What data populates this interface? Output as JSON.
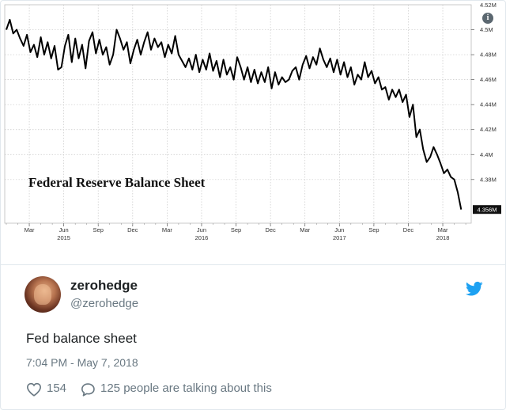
{
  "tweet": {
    "display_name": "zerohedge",
    "screen_name": "@zerohedge",
    "text": "Fed balance sheet",
    "timestamp": "7:04 PM - May 7, 2018",
    "like_count": "154",
    "talking_text": "125 people are talking about this",
    "icons": [
      "twitter-bird-icon",
      "heart-icon",
      "reply-icon",
      "info-icon"
    ],
    "colors": {
      "link": "#1da1f2",
      "muted": "#697882",
      "text": "#1c2022",
      "border": "#e1e8ed"
    }
  },
  "chart_data": {
    "type": "line",
    "title": "Federal Reserve Balance Sheet",
    "ylim": [
      4.345,
      4.52
    ],
    "y_ticks": [
      4.38,
      4.4,
      4.42,
      4.44,
      4.46,
      4.48,
      4.5
    ],
    "y_tick_labels": [
      "4.38M",
      "4.4M",
      "4.42M",
      "4.44M",
      "4.46M",
      "4.48M",
      "4.5M"
    ],
    "y_top_label": "4.52M",
    "last_value_label": "4.356M",
    "last_value": 4.356,
    "x_ticks": [
      {
        "label": "Mar",
        "year": "",
        "m": 2
      },
      {
        "label": "Jun",
        "year": "2015",
        "m": 5
      },
      {
        "label": "Sep",
        "year": "",
        "m": 8
      },
      {
        "label": "Dec",
        "year": "",
        "m": 11
      },
      {
        "label": "Mar",
        "year": "",
        "m": 14
      },
      {
        "label": "Jun",
        "year": "2016",
        "m": 17
      },
      {
        "label": "Sep",
        "year": "",
        "m": 20
      },
      {
        "label": "Dec",
        "year": "",
        "m": 23
      },
      {
        "label": "Mar",
        "year": "",
        "m": 26
      },
      {
        "label": "Jun",
        "year": "2017",
        "m": 29
      },
      {
        "label": "Sep",
        "year": "",
        "m": 32
      },
      {
        "label": "Dec",
        "year": "",
        "m": 35
      },
      {
        "label": "Mar",
        "year": "2018",
        "m": 38
      }
    ],
    "x_range": [
      0,
      40.2
    ],
    "series": [
      {
        "values": [
          [
            0.0,
            4.5
          ],
          [
            0.3,
            4.508
          ],
          [
            0.6,
            4.497
          ],
          [
            0.9,
            4.5
          ],
          [
            1.2,
            4.493
          ],
          [
            1.5,
            4.487
          ],
          [
            1.8,
            4.496
          ],
          [
            2.1,
            4.482
          ],
          [
            2.4,
            4.488
          ],
          [
            2.7,
            4.478
          ],
          [
            3.0,
            4.494
          ],
          [
            3.3,
            4.48
          ],
          [
            3.6,
            4.49
          ],
          [
            3.9,
            4.477
          ],
          [
            4.2,
            4.487
          ],
          [
            4.5,
            4.468
          ],
          [
            4.8,
            4.47
          ],
          [
            5.1,
            4.487
          ],
          [
            5.4,
            4.496
          ],
          [
            5.7,
            4.474
          ],
          [
            6.0,
            4.493
          ],
          [
            6.3,
            4.477
          ],
          [
            6.6,
            4.488
          ],
          [
            6.9,
            4.469
          ],
          [
            7.2,
            4.491
          ],
          [
            7.5,
            4.498
          ],
          [
            7.8,
            4.481
          ],
          [
            8.1,
            4.492
          ],
          [
            8.4,
            4.48
          ],
          [
            8.7,
            4.486
          ],
          [
            9.0,
            4.472
          ],
          [
            9.3,
            4.48
          ],
          [
            9.6,
            4.5
          ],
          [
            9.9,
            4.493
          ],
          [
            10.2,
            4.484
          ],
          [
            10.5,
            4.49
          ],
          [
            10.8,
            4.473
          ],
          [
            11.1,
            4.484
          ],
          [
            11.4,
            4.492
          ],
          [
            11.7,
            4.48
          ],
          [
            12.0,
            4.49
          ],
          [
            12.3,
            4.498
          ],
          [
            12.6,
            4.484
          ],
          [
            12.9,
            4.493
          ],
          [
            13.2,
            4.486
          ],
          [
            13.5,
            4.49
          ],
          [
            13.8,
            4.478
          ],
          [
            14.1,
            4.488
          ],
          [
            14.4,
            4.481
          ],
          [
            14.7,
            4.495
          ],
          [
            15.0,
            4.48
          ],
          [
            15.3,
            4.475
          ],
          [
            15.6,
            4.47
          ],
          [
            15.9,
            4.477
          ],
          [
            16.2,
            4.468
          ],
          [
            16.5,
            4.48
          ],
          [
            16.8,
            4.466
          ],
          [
            17.1,
            4.476
          ],
          [
            17.4,
            4.468
          ],
          [
            17.7,
            4.481
          ],
          [
            18.0,
            4.467
          ],
          [
            18.3,
            4.475
          ],
          [
            18.6,
            4.462
          ],
          [
            18.9,
            4.476
          ],
          [
            19.2,
            4.464
          ],
          [
            19.5,
            4.47
          ],
          [
            19.8,
            4.46
          ],
          [
            20.1,
            4.478
          ],
          [
            20.4,
            4.47
          ],
          [
            20.7,
            4.46
          ],
          [
            21.0,
            4.47
          ],
          [
            21.3,
            4.458
          ],
          [
            21.6,
            4.468
          ],
          [
            21.9,
            4.457
          ],
          [
            22.2,
            4.466
          ],
          [
            22.5,
            4.458
          ],
          [
            22.8,
            4.47
          ],
          [
            23.1,
            4.453
          ],
          [
            23.4,
            4.466
          ],
          [
            23.7,
            4.456
          ],
          [
            24.0,
            4.462
          ],
          [
            24.3,
            4.458
          ],
          [
            24.6,
            4.46
          ],
          [
            24.9,
            4.467
          ],
          [
            25.2,
            4.47
          ],
          [
            25.5,
            4.46
          ],
          [
            25.8,
            4.472
          ],
          [
            26.1,
            4.479
          ],
          [
            26.4,
            4.469
          ],
          [
            26.7,
            4.478
          ],
          [
            27.0,
            4.472
          ],
          [
            27.3,
            4.485
          ],
          [
            27.6,
            4.476
          ],
          [
            27.9,
            4.47
          ],
          [
            28.2,
            4.477
          ],
          [
            28.5,
            4.466
          ],
          [
            28.8,
            4.476
          ],
          [
            29.1,
            4.464
          ],
          [
            29.4,
            4.474
          ],
          [
            29.7,
            4.462
          ],
          [
            30.0,
            4.47
          ],
          [
            30.3,
            4.456
          ],
          [
            30.6,
            4.464
          ],
          [
            30.9,
            4.46
          ],
          [
            31.2,
            4.474
          ],
          [
            31.5,
            4.462
          ],
          [
            31.8,
            4.467
          ],
          [
            32.1,
            4.457
          ],
          [
            32.4,
            4.462
          ],
          [
            32.7,
            4.452
          ],
          [
            33.0,
            4.454
          ],
          [
            33.3,
            4.444
          ],
          [
            33.6,
            4.452
          ],
          [
            33.9,
            4.446
          ],
          [
            34.2,
            4.452
          ],
          [
            34.5,
            4.442
          ],
          [
            34.8,
            4.448
          ],
          [
            35.1,
            4.43
          ],
          [
            35.4,
            4.44
          ],
          [
            35.7,
            4.414
          ],
          [
            36.0,
            4.42
          ],
          [
            36.3,
            4.404
          ],
          [
            36.6,
            4.394
          ],
          [
            36.9,
            4.398
          ],
          [
            37.2,
            4.406
          ],
          [
            37.5,
            4.4
          ],
          [
            37.8,
            4.393
          ],
          [
            38.1,
            4.385
          ],
          [
            38.4,
            4.388
          ],
          [
            38.7,
            4.382
          ],
          [
            39.0,
            4.38
          ],
          [
            39.3,
            4.37
          ],
          [
            39.6,
            4.356
          ]
        ]
      }
    ],
    "grid": true,
    "line_color": "#000000"
  }
}
